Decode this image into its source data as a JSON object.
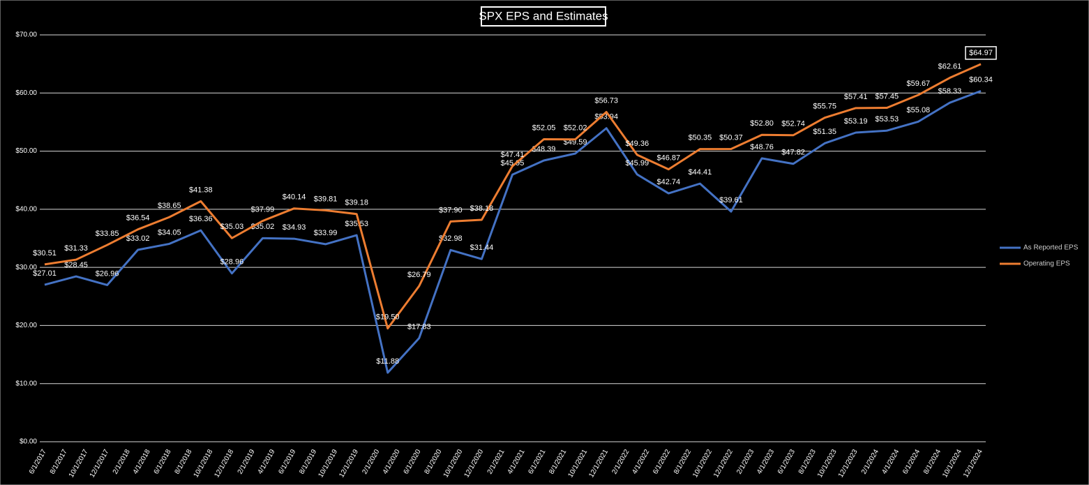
{
  "chart_data": {
    "type": "line",
    "title": "SPX EPS and Estimates",
    "x": [
      "6/1/2017",
      "9/1/2017",
      "12/1/2017",
      "3/1/2018",
      "6/1/2018",
      "9/1/2018",
      "12/1/2018",
      "3/1/2019",
      "6/1/2019",
      "9/1/2019",
      "12/1/2019",
      "3/1/2020",
      "6/1/2020",
      "9/1/2020",
      "12/1/2020",
      "3/1/2021",
      "6/1/2021",
      "9/1/2021",
      "12/1/2021",
      "3/1/2022",
      "6/1/2022",
      "9/1/2022",
      "12/1/2022",
      "3/1/2023",
      "6/1/2023",
      "9/1/2023",
      "12/1/2023",
      "3/1/2024",
      "6/1/2024",
      "9/1/2024",
      "12/1/2024"
    ],
    "series": [
      {
        "name": "As Reported EPS",
        "color": "#4472c4",
        "values": [
          27.01,
          28.45,
          26.96,
          33.02,
          34.05,
          36.36,
          28.96,
          35.02,
          34.93,
          33.99,
          35.53,
          11.88,
          17.83,
          32.98,
          31.44,
          45.95,
          48.39,
          49.59,
          53.94,
          45.99,
          42.74,
          44.41,
          39.61,
          48.76,
          47.82,
          51.35,
          53.19,
          53.53,
          55.08,
          58.33,
          60.34
        ],
        "value_labels": [
          "$27.01",
          "$28.45",
          "$26.96",
          "$33.02",
          "$34.05",
          "$36.36",
          "$28.96",
          "$35.02",
          "$34.93",
          "$33.99",
          "$35.53",
          "$11.88",
          "$17.83",
          "$32.98",
          "$31.44",
          "$45.95",
          "$48.39",
          "$49.59",
          "$53.94",
          "$45.99",
          "$42.74",
          "$44.41",
          "$39.61",
          "$48.76",
          "$47.82",
          "$51.35",
          "$53.19",
          "$53.53",
          "$55.08",
          "$58.33",
          "$60.34"
        ]
      },
      {
        "name": "Operating EPS",
        "color": "#ed7d31",
        "values": [
          30.51,
          31.33,
          33.85,
          36.54,
          38.65,
          41.38,
          35.03,
          37.99,
          40.14,
          39.81,
          39.18,
          19.5,
          26.79,
          37.9,
          38.18,
          47.41,
          52.05,
          52.02,
          56.73,
          49.36,
          46.87,
          50.35,
          50.37,
          52.8,
          52.74,
          55.75,
          57.41,
          57.45,
          59.67,
          62.61,
          64.97
        ],
        "value_labels": [
          "$30.51",
          "$31.33",
          "$33.85",
          "$36.54",
          "$38.65",
          "$41.38",
          "$35.03",
          "$37.99",
          "$40.14",
          "$39.81",
          "$39.18",
          "$19.50",
          "$26.79",
          "$37.90",
          "$38.18",
          "$47.41",
          "$52.05",
          "$52.02",
          "$56.73",
          "$49.36",
          "$46.87",
          "$50.35",
          "$50.37",
          "$52.80",
          "$52.74",
          "$55.75",
          "$57.41",
          "$57.45",
          "$59.67",
          "$62.61",
          "$64.97"
        ]
      }
    ],
    "xlim": [
      "6/1/2017",
      "12/1/2024"
    ],
    "xticks": [
      "6/1/2017",
      "8/1/2017",
      "10/1/2017",
      "12/1/2017",
      "2/1/2018",
      "4/1/2018",
      "6/1/2018",
      "8/1/2018",
      "10/1/2018",
      "12/1/2018",
      "2/1/2019",
      "4/1/2019",
      "6/1/2019",
      "8/1/2019",
      "10/1/2019",
      "12/1/2019",
      "2/1/2020",
      "4/1/2020",
      "6/1/2020",
      "8/1/2020",
      "10/1/2020",
      "12/1/2020",
      "2/1/2021",
      "4/1/2021",
      "6/1/2021",
      "8/1/2021",
      "10/1/2021",
      "12/1/2021",
      "2/1/2022",
      "4/1/2022",
      "6/1/2022",
      "8/1/2022",
      "10/1/2022",
      "12/1/2022",
      "2/1/2023",
      "4/1/2023",
      "6/1/2023",
      "8/1/2023",
      "10/1/2023",
      "12/1/2023",
      "2/1/2024",
      "4/1/2024",
      "6/1/2024",
      "8/1/2024",
      "10/1/2024",
      "12/1/2024"
    ],
    "ylim": [
      0,
      70
    ],
    "yticks": [
      {
        "value": 0,
        "label": "$0.00"
      },
      {
        "value": 10,
        "label": "$10.00"
      },
      {
        "value": 20,
        "label": "$20.00"
      },
      {
        "value": 30,
        "label": "$30.00"
      },
      {
        "value": 40,
        "label": "$40.00"
      },
      {
        "value": 50,
        "label": "$50.00"
      },
      {
        "value": 60,
        "label": "$60.00"
      },
      {
        "value": 70,
        "label": "$70.00"
      }
    ],
    "grid": true,
    "legend": "right"
  }
}
